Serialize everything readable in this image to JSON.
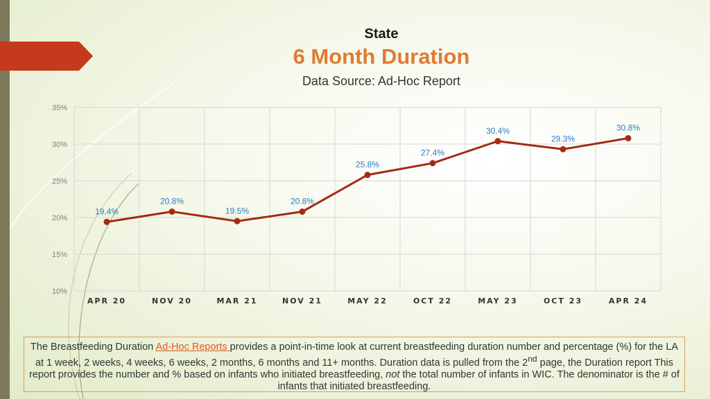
{
  "header": {
    "title": "State",
    "subtitle": "6 Month Duration",
    "source": "Data Source: Ad-Hoc Report"
  },
  "colors": {
    "line": "#a52a14",
    "label": "#2e7bc4",
    "accent": "#e07b32",
    "sidebar": "#7d7a5b",
    "arrow": "#c5391c"
  },
  "chart_data": {
    "type": "line",
    "categories": [
      "APR 20",
      "NOV 20",
      "MAR 21",
      "NOV 21",
      "MAY 22",
      "OCT 22",
      "MAY 23",
      "OCT 23",
      "APR 24"
    ],
    "values": [
      19.4,
      20.8,
      19.5,
      20.8,
      25.8,
      27.4,
      30.4,
      29.3,
      30.8
    ],
    "data_labels": [
      "19.4%",
      "20.8%",
      "19.5%",
      "20.8%",
      "25.8%",
      "27.4%",
      "30.4%",
      "29.3%",
      "30.8%"
    ],
    "ylim": [
      10,
      35
    ],
    "yticks": [
      10,
      15,
      20,
      25,
      30,
      35
    ],
    "ytick_labels": [
      "10%",
      "15%",
      "20%",
      "25%",
      "30%",
      "35%"
    ],
    "grid": true,
    "legend": "none"
  },
  "footer": {
    "part1": "The Breastfeeding Duration ",
    "link": "Ad-Hoc Reports ",
    "part2": "provides a point-in-time look at current breastfeeding duration number and percentage (%) for the LA at 1 week, 2 weeks, 4 weeks, 6 weeks, 2 months, 6 months and 11+ months. Duration data is pulled from the 2",
    "sup": "nd",
    "part3": " page, the Duration report This report provides the number and % based on infants who initiated breastfeeding, ",
    "emph": "not",
    "part4": " the total number of infants in WIC. The denominator is the # of infants that initiated breastfeeding."
  }
}
